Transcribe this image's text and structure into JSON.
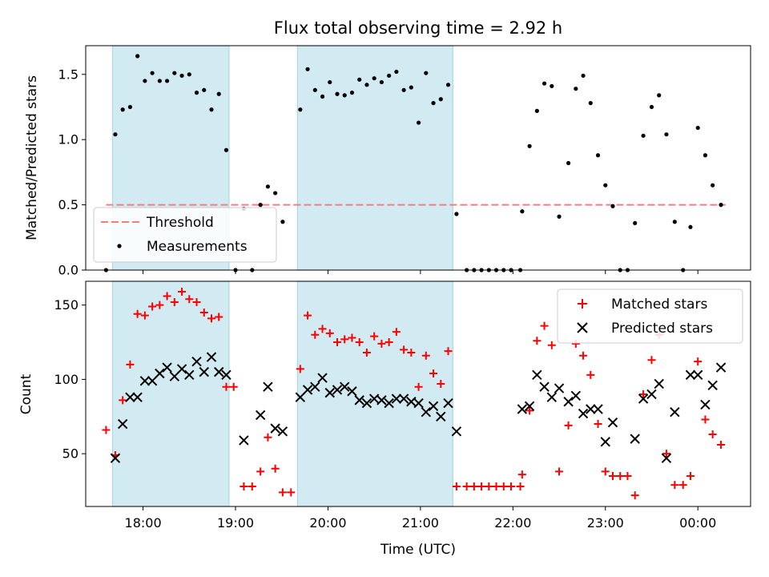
{
  "chart_data": {
    "type": "scatter",
    "title": "Flux total observing time = 2.92 h",
    "xlabel": "Time (UTC)",
    "x_ticks": [
      "18:00",
      "19:00",
      "20:00",
      "21:00",
      "22:00",
      "23:00",
      "00:00"
    ],
    "x_tick_hours": [
      18,
      19,
      20,
      21,
      22,
      23,
      24
    ],
    "xlim_hours": [
      17.38,
      24.57
    ],
    "shaded_intervals_hours": [
      [
        17.67,
        18.93
      ],
      [
        19.67,
        21.35
      ]
    ],
    "shade_color": "#add8e6",
    "panels": [
      {
        "ylabel": "Matched/Predicted stars",
        "ylim": [
          0,
          1.72
        ],
        "y_ticks": [
          0.0,
          0.5,
          1.0,
          1.5
        ],
        "y_tick_labels": [
          "0.0",
          "0.5",
          "1.0",
          "1.5"
        ],
        "legend_position": "lower-left",
        "threshold": {
          "name": "Threshold",
          "value": 0.5,
          "x_start_hours": 17.6,
          "x_end_hours": 24.3,
          "color": "#f08080"
        },
        "series": [
          {
            "name": "Measurements",
            "color": "#000000",
            "marker": "dot",
            "points": [
              [
                17.6,
                0.0
              ],
              [
                17.7,
                1.04
              ],
              [
                17.78,
                1.23
              ],
              [
                17.86,
                1.25
              ],
              [
                17.94,
                1.64
              ],
              [
                18.02,
                1.45
              ],
              [
                18.1,
                1.51
              ],
              [
                18.18,
                1.45
              ],
              [
                18.26,
                1.45
              ],
              [
                18.34,
                1.51
              ],
              [
                18.42,
                1.49
              ],
              [
                18.5,
                1.5
              ],
              [
                18.58,
                1.36
              ],
              [
                18.66,
                1.38
              ],
              [
                18.74,
                1.23
              ],
              [
                18.82,
                1.35
              ],
              [
                18.9,
                0.92
              ],
              [
                19.0,
                0.0
              ],
              [
                19.09,
                0.47
              ],
              [
                19.18,
                0.0
              ],
              [
                19.27,
                0.5
              ],
              [
                19.35,
                0.64
              ],
              [
                19.43,
                0.59
              ],
              [
                19.51,
                0.37
              ],
              [
                19.7,
                1.23
              ],
              [
                19.78,
                1.54
              ],
              [
                19.86,
                1.38
              ],
              [
                19.94,
                1.33
              ],
              [
                20.02,
                1.44
              ],
              [
                20.1,
                1.35
              ],
              [
                20.18,
                1.34
              ],
              [
                20.26,
                1.36
              ],
              [
                20.34,
                1.46
              ],
              [
                20.42,
                1.42
              ],
              [
                20.5,
                1.47
              ],
              [
                20.58,
                1.44
              ],
              [
                20.66,
                1.49
              ],
              [
                20.74,
                1.52
              ],
              [
                20.82,
                1.38
              ],
              [
                20.9,
                1.4
              ],
              [
                20.98,
                1.13
              ],
              [
                21.06,
                1.51
              ],
              [
                21.14,
                1.28
              ],
              [
                21.22,
                1.31
              ],
              [
                21.3,
                1.42
              ],
              [
                21.39,
                0.43
              ],
              [
                21.5,
                0.0
              ],
              [
                21.58,
                0.0
              ],
              [
                21.66,
                0.0
              ],
              [
                21.74,
                0.0
              ],
              [
                21.82,
                0.0
              ],
              [
                21.9,
                0.0
              ],
              [
                21.98,
                0.0
              ],
              [
                22.08,
                0.0
              ],
              [
                22.1,
                0.45
              ],
              [
                22.18,
                0.95
              ],
              [
                22.26,
                1.22
              ],
              [
                22.34,
                1.43
              ],
              [
                22.42,
                1.41
              ],
              [
                22.5,
                0.41
              ],
              [
                22.6,
                0.82
              ],
              [
                22.68,
                1.39
              ],
              [
                22.76,
                1.49
              ],
              [
                22.84,
                1.28
              ],
              [
                22.92,
                0.88
              ],
              [
                23.0,
                0.65
              ],
              [
                23.08,
                0.49
              ],
              [
                23.16,
                0.0
              ],
              [
                23.24,
                0.0
              ],
              [
                23.32,
                0.36
              ],
              [
                23.41,
                1.03
              ],
              [
                23.5,
                1.25
              ],
              [
                23.58,
                1.34
              ],
              [
                23.66,
                1.04
              ],
              [
                23.75,
                0.37
              ],
              [
                23.84,
                0.0
              ],
              [
                23.92,
                0.33
              ],
              [
                24.0,
                1.09
              ],
              [
                24.08,
                0.88
              ],
              [
                24.16,
                0.65
              ],
              [
                24.25,
                0.5
              ]
            ]
          }
        ]
      },
      {
        "ylabel": "Count",
        "ylim": [
          14.5,
          166
        ],
        "y_ticks": [
          50,
          100,
          150
        ],
        "y_tick_labels": [
          "50",
          "100",
          "150"
        ],
        "legend_position": "upper-right",
        "series": [
          {
            "name": "Matched stars",
            "color": "#ff0000",
            "marker": "plus",
            "points": [
              [
                17.6,
                66
              ],
              [
                17.7,
                49
              ],
              [
                17.78,
                86
              ],
              [
                17.86,
                110
              ],
              [
                17.94,
                144
              ],
              [
                18.02,
                143
              ],
              [
                18.1,
                149
              ],
              [
                18.18,
                150
              ],
              [
                18.26,
                156
              ],
              [
                18.34,
                152
              ],
              [
                18.42,
                159
              ],
              [
                18.5,
                154
              ],
              [
                18.58,
                152
              ],
              [
                18.66,
                145
              ],
              [
                18.74,
                141
              ],
              [
                18.82,
                142
              ],
              [
                18.9,
                95
              ],
              [
                18.98,
                95
              ],
              [
                19.09,
                28
              ],
              [
                19.18,
                28
              ],
              [
                19.27,
                38
              ],
              [
                19.35,
                61
              ],
              [
                19.43,
                40
              ],
              [
                19.51,
                24
              ],
              [
                19.6,
                24
              ],
              [
                19.7,
                107
              ],
              [
                19.78,
                143
              ],
              [
                19.86,
                130
              ],
              [
                19.94,
                134
              ],
              [
                20.02,
                131
              ],
              [
                20.1,
                125
              ],
              [
                20.18,
                127
              ],
              [
                20.26,
                128
              ],
              [
                20.34,
                125
              ],
              [
                20.42,
                118
              ],
              [
                20.5,
                129
              ],
              [
                20.58,
                124
              ],
              [
                20.66,
                125
              ],
              [
                20.74,
                132
              ],
              [
                20.82,
                120
              ],
              [
                20.9,
                118
              ],
              [
                20.98,
                95
              ],
              [
                21.06,
                116
              ],
              [
                21.14,
                104
              ],
              [
                21.22,
                97
              ],
              [
                21.3,
                119
              ],
              [
                21.39,
                28
              ],
              [
                21.5,
                28
              ],
              [
                21.58,
                28
              ],
              [
                21.66,
                28
              ],
              [
                21.74,
                28
              ],
              [
                21.82,
                28
              ],
              [
                21.9,
                28
              ],
              [
                21.98,
                28
              ],
              [
                22.08,
                28
              ],
              [
                22.1,
                36
              ],
              [
                22.18,
                79
              ],
              [
                22.26,
                126
              ],
              [
                22.34,
                136
              ],
              [
                22.42,
                123
              ],
              [
                22.5,
                38
              ],
              [
                22.6,
                69
              ],
              [
                22.68,
                124
              ],
              [
                22.76,
                116
              ],
              [
                22.84,
                103
              ],
              [
                22.92,
                70
              ],
              [
                23.0,
                38
              ],
              [
                23.08,
                35
              ],
              [
                23.16,
                35
              ],
              [
                23.24,
                35
              ],
              [
                23.32,
                22
              ],
              [
                23.41,
                90
              ],
              [
                23.5,
                113
              ],
              [
                23.58,
                130
              ],
              [
                23.66,
                50
              ],
              [
                23.75,
                29
              ],
              [
                23.84,
                29
              ],
              [
                23.92,
                35
              ],
              [
                24.0,
                112
              ],
              [
                24.08,
                73
              ],
              [
                24.16,
                63
              ],
              [
                24.25,
                56
              ]
            ]
          },
          {
            "name": "Predicted stars",
            "color": "#000000",
            "marker": "x",
            "points": [
              [
                17.7,
                47
              ],
              [
                17.78,
                70
              ],
              [
                17.86,
                88
              ],
              [
                17.94,
                88
              ],
              [
                18.02,
                99
              ],
              [
                18.1,
                99
              ],
              [
                18.18,
                104
              ],
              [
                18.26,
                108
              ],
              [
                18.34,
                102
              ],
              [
                18.42,
                107
              ],
              [
                18.5,
                103
              ],
              [
                18.58,
                112
              ],
              [
                18.66,
                105
              ],
              [
                18.74,
                115
              ],
              [
                18.82,
                105
              ],
              [
                18.9,
                103
              ],
              [
                19.09,
                59
              ],
              [
                19.27,
                76
              ],
              [
                19.35,
                95
              ],
              [
                19.43,
                67
              ],
              [
                19.51,
                65
              ],
              [
                19.7,
                88
              ],
              [
                19.78,
                93
              ],
              [
                19.86,
                95
              ],
              [
                19.94,
                101
              ],
              [
                20.02,
                91
              ],
              [
                20.1,
                93
              ],
              [
                20.18,
                95
              ],
              [
                20.26,
                92
              ],
              [
                20.34,
                86
              ],
              [
                20.42,
                84
              ],
              [
                20.5,
                87
              ],
              [
                20.58,
                86
              ],
              [
                20.66,
                84
              ],
              [
                20.74,
                87
              ],
              [
                20.82,
                87
              ],
              [
                20.9,
                85
              ],
              [
                20.98,
                84
              ],
              [
                21.06,
                78
              ],
              [
                21.14,
                82
              ],
              [
                21.22,
                75
              ],
              [
                21.3,
                84
              ],
              [
                21.39,
                65
              ],
              [
                22.1,
                80
              ],
              [
                22.18,
                82
              ],
              [
                22.26,
                103
              ],
              [
                22.34,
                95
              ],
              [
                22.42,
                88
              ],
              [
                22.5,
                94
              ],
              [
                22.6,
                85
              ],
              [
                22.68,
                89
              ],
              [
                22.76,
                77
              ],
              [
                22.84,
                80
              ],
              [
                22.92,
                80
              ],
              [
                23.0,
                58
              ],
              [
                23.08,
                71
              ],
              [
                23.32,
                60
              ],
              [
                23.41,
                87
              ],
              [
                23.5,
                90
              ],
              [
                23.58,
                97
              ],
              [
                23.66,
                47
              ],
              [
                23.75,
                78
              ],
              [
                23.92,
                103
              ],
              [
                24.0,
                103
              ],
              [
                24.08,
                83
              ],
              [
                24.16,
                96
              ],
              [
                24.25,
                108
              ]
            ]
          }
        ]
      }
    ]
  }
}
